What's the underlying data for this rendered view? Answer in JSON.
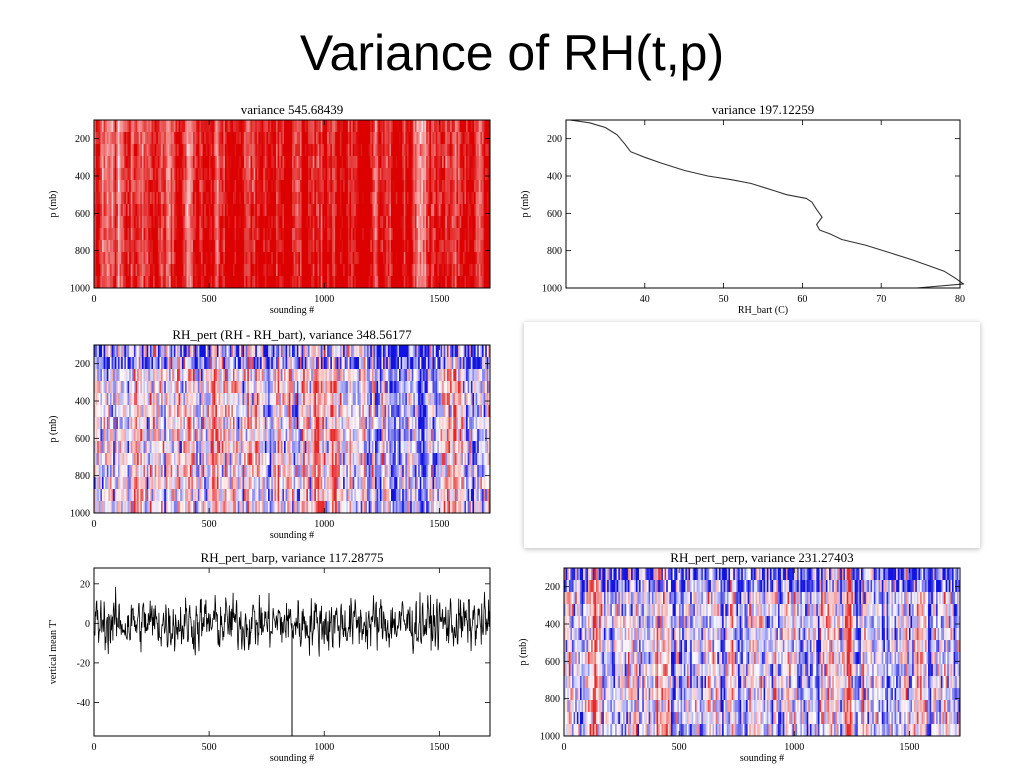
{
  "slide": {
    "title": "Variance of RH(t,p)"
  },
  "chart_data": [
    {
      "id": "rh",
      "type": "heatmap",
      "title": "variance 545.68439",
      "xlabel": "sounding #",
      "ylabel": "p (mb)",
      "xlim": [
        0,
        1720
      ],
      "ylim": [
        1000,
        100
      ],
      "xticks": [
        0,
        500,
        1000,
        1500
      ],
      "yticks": [
        200,
        400,
        600,
        800,
        1000
      ],
      "colormap": "white-red",
      "colors": {
        "low": "#ffffff",
        "high": "#e00000"
      }
    },
    {
      "id": "rh_bart",
      "type": "line",
      "title": "variance 197.12259",
      "xlabel": "RH_bart (C)",
      "ylabel": "p (mb)",
      "xlim": [
        30,
        80
      ],
      "ylim": [
        1000,
        100
      ],
      "xticks": [
        40,
        50,
        60,
        70,
        80
      ],
      "yticks": [
        200,
        400,
        600,
        800,
        1000
      ],
      "series": [
        {
          "x": [
            30.5,
            33,
            35,
            36.5,
            37.5,
            38.2,
            40,
            42,
            45,
            48,
            51,
            53.5,
            55,
            56.5,
            58,
            60.5,
            61.2,
            61.8,
            62.5,
            61.8,
            62.2,
            63.5,
            65,
            68,
            71,
            74,
            76,
            78,
            79.5,
            80.5
          ],
          "y": [
            100,
            115,
            140,
            180,
            230,
            270,
            300,
            330,
            370,
            400,
            420,
            440,
            460,
            480,
            500,
            520,
            540,
            580,
            620,
            660,
            690,
            710,
            740,
            770,
            810,
            850,
            880,
            910,
            950,
            980
          ]
        },
        {
          "x": [
            74.5,
            80.5
          ],
          "y": [
            1000,
            978
          ]
        }
      ],
      "colors": {
        "line": "#333333"
      }
    },
    {
      "id": "rh_pert",
      "type": "heatmap",
      "title": "RH_pert (RH - RH_bart), variance 348.56177",
      "xlabel": "sounding #",
      "ylabel": "p (mb)",
      "xlim": [
        0,
        1720
      ],
      "ylim": [
        1000,
        100
      ],
      "xticks": [
        0,
        500,
        1000,
        1500
      ],
      "yticks": [
        200,
        400,
        600,
        800,
        1000
      ],
      "colormap": "blue-white-red",
      "colors": {
        "neg": "#1010d0",
        "mid": "#ffffff",
        "pos": "#e82020"
      }
    },
    {
      "id": "rh_pert_barp",
      "type": "line",
      "title": "RH_pert_barp, variance 117.28775",
      "xlabel": "sounding #",
      "ylabel": "vertical mean T'",
      "xlim": [
        0,
        1720
      ],
      "ylim": [
        -57,
        28
      ],
      "xticks": [
        0,
        500,
        1000,
        1500
      ],
      "yticks": [
        -40,
        -20,
        0,
        20
      ],
      "series_note": "noisy time series, std ~11 around 0, one spike near sounding 860 reaching -57",
      "spike": {
        "x": 860,
        "y": -57
      },
      "colors": {
        "line": "#000000"
      }
    },
    {
      "id": "rh_pert_perp",
      "type": "heatmap",
      "title": "RH_pert_perp, variance 231.27403",
      "xlabel": "sounding #",
      "ylabel": "p (mb)",
      "xlim": [
        0,
        1720
      ],
      "ylim": [
        1000,
        100
      ],
      "xticks": [
        0,
        500,
        1000,
        1500
      ],
      "yticks": [
        200,
        400,
        600,
        800,
        1000
      ],
      "colormap": "blue-white-red",
      "colors": {
        "neg": "#1010d0",
        "mid": "#ffffff",
        "pos": "#e82020"
      }
    }
  ]
}
